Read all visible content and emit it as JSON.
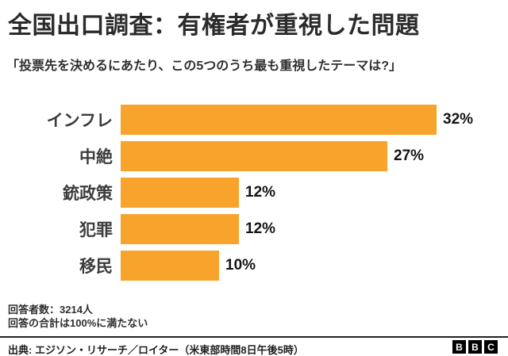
{
  "header": {
    "title": "全国出口調査：有権者が重視した問題",
    "subtitle": "「投票先を決めるにあたり、この5つのうち最も重視したテーマは?」"
  },
  "chart_data": {
    "type": "bar",
    "orientation": "horizontal",
    "title": "全国出口調査：有権者が重視した問題",
    "subtitle": "「投票先を決めるにあたり、この5つのうち最も重視したテーマは?」",
    "categories": [
      "インフレ",
      "中絶",
      "銃政策",
      "犯罪",
      "移民"
    ],
    "values": [
      32,
      27,
      12,
      12,
      10
    ],
    "value_suffix": "%",
    "xlim": [
      0,
      32
    ],
    "grid": false,
    "legend": false,
    "data_labels": [
      "32%",
      "27%",
      "12%",
      "12%",
      "10%"
    ]
  },
  "notes": {
    "line1": "回答者数：3214人",
    "line2": "回答の合計は100%に満たない"
  },
  "footer": {
    "source": "出典: エジソン・リサーチ／ロイター（米東部時間8日午後5時）",
    "logo_letters": [
      "B",
      "B",
      "C"
    ]
  },
  "colors": {
    "bar": "#F8A42C",
    "title_text": "#2b2b2b",
    "label_text": "#3c3c3c",
    "value_text": "#141414",
    "background": "#ffffff",
    "logo_bg": "#000000"
  }
}
